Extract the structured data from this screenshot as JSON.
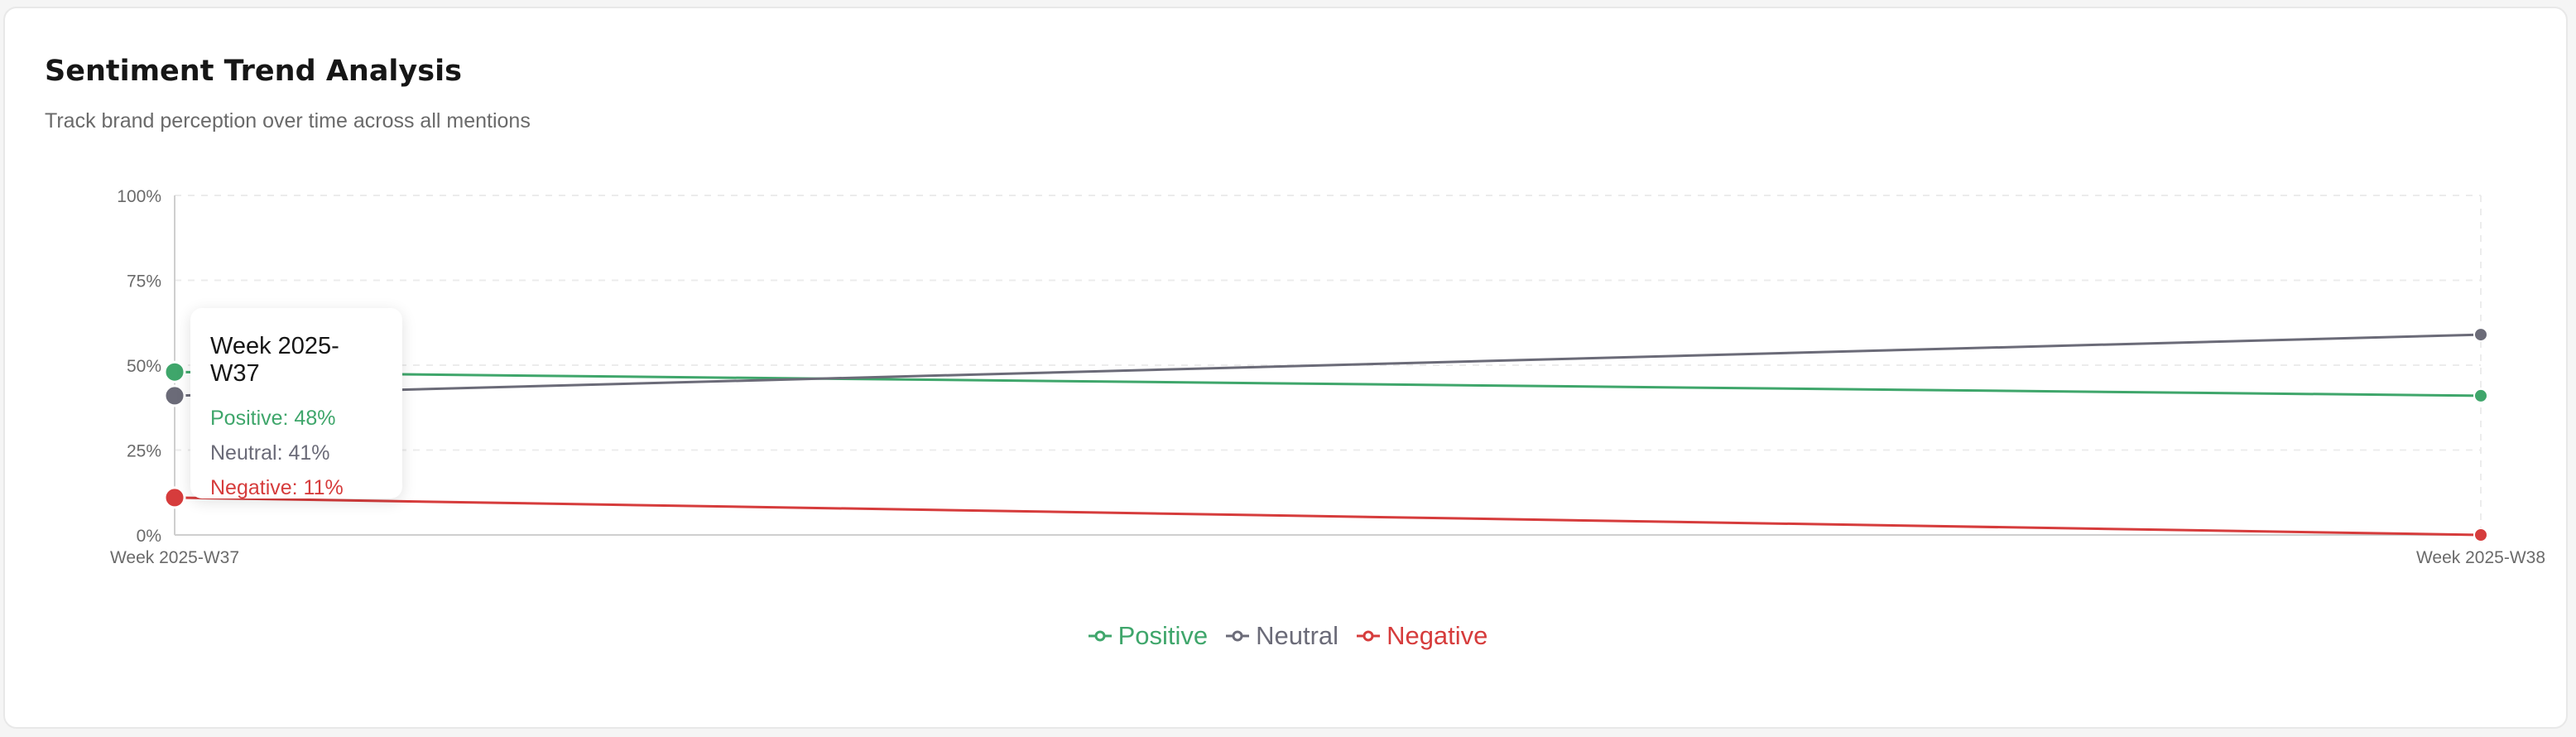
{
  "header": {
    "title": "Sentiment Trend Analysis",
    "subtitle": "Track brand perception over time across all mentions"
  },
  "tooltip": {
    "title": "Week 2025-W37",
    "rows": [
      "Positive: 48%",
      "Neutral: 41%",
      "Negative: 11%"
    ]
  },
  "colors": {
    "positive": "#3fa66b",
    "neutral": "#6b6b78",
    "negative": "#d63c3c",
    "grid": "#ececec",
    "axis": "#cfcfcf",
    "tick": "#6a6a6a"
  },
  "chart_data": {
    "type": "line",
    "x": [
      "Week 2025-W37",
      "Week 2025-W38"
    ],
    "y_ticks": [
      "0%",
      "25%",
      "50%",
      "75%",
      "100%"
    ],
    "ylim": [
      0,
      100
    ],
    "grid": true,
    "legend_position": "bottom-center",
    "series": [
      {
        "name": "Positive",
        "values": [
          48,
          41
        ]
      },
      {
        "name": "Neutral",
        "values": [
          41,
          59
        ]
      },
      {
        "name": "Negative",
        "values": [
          11,
          0
        ]
      }
    ]
  }
}
